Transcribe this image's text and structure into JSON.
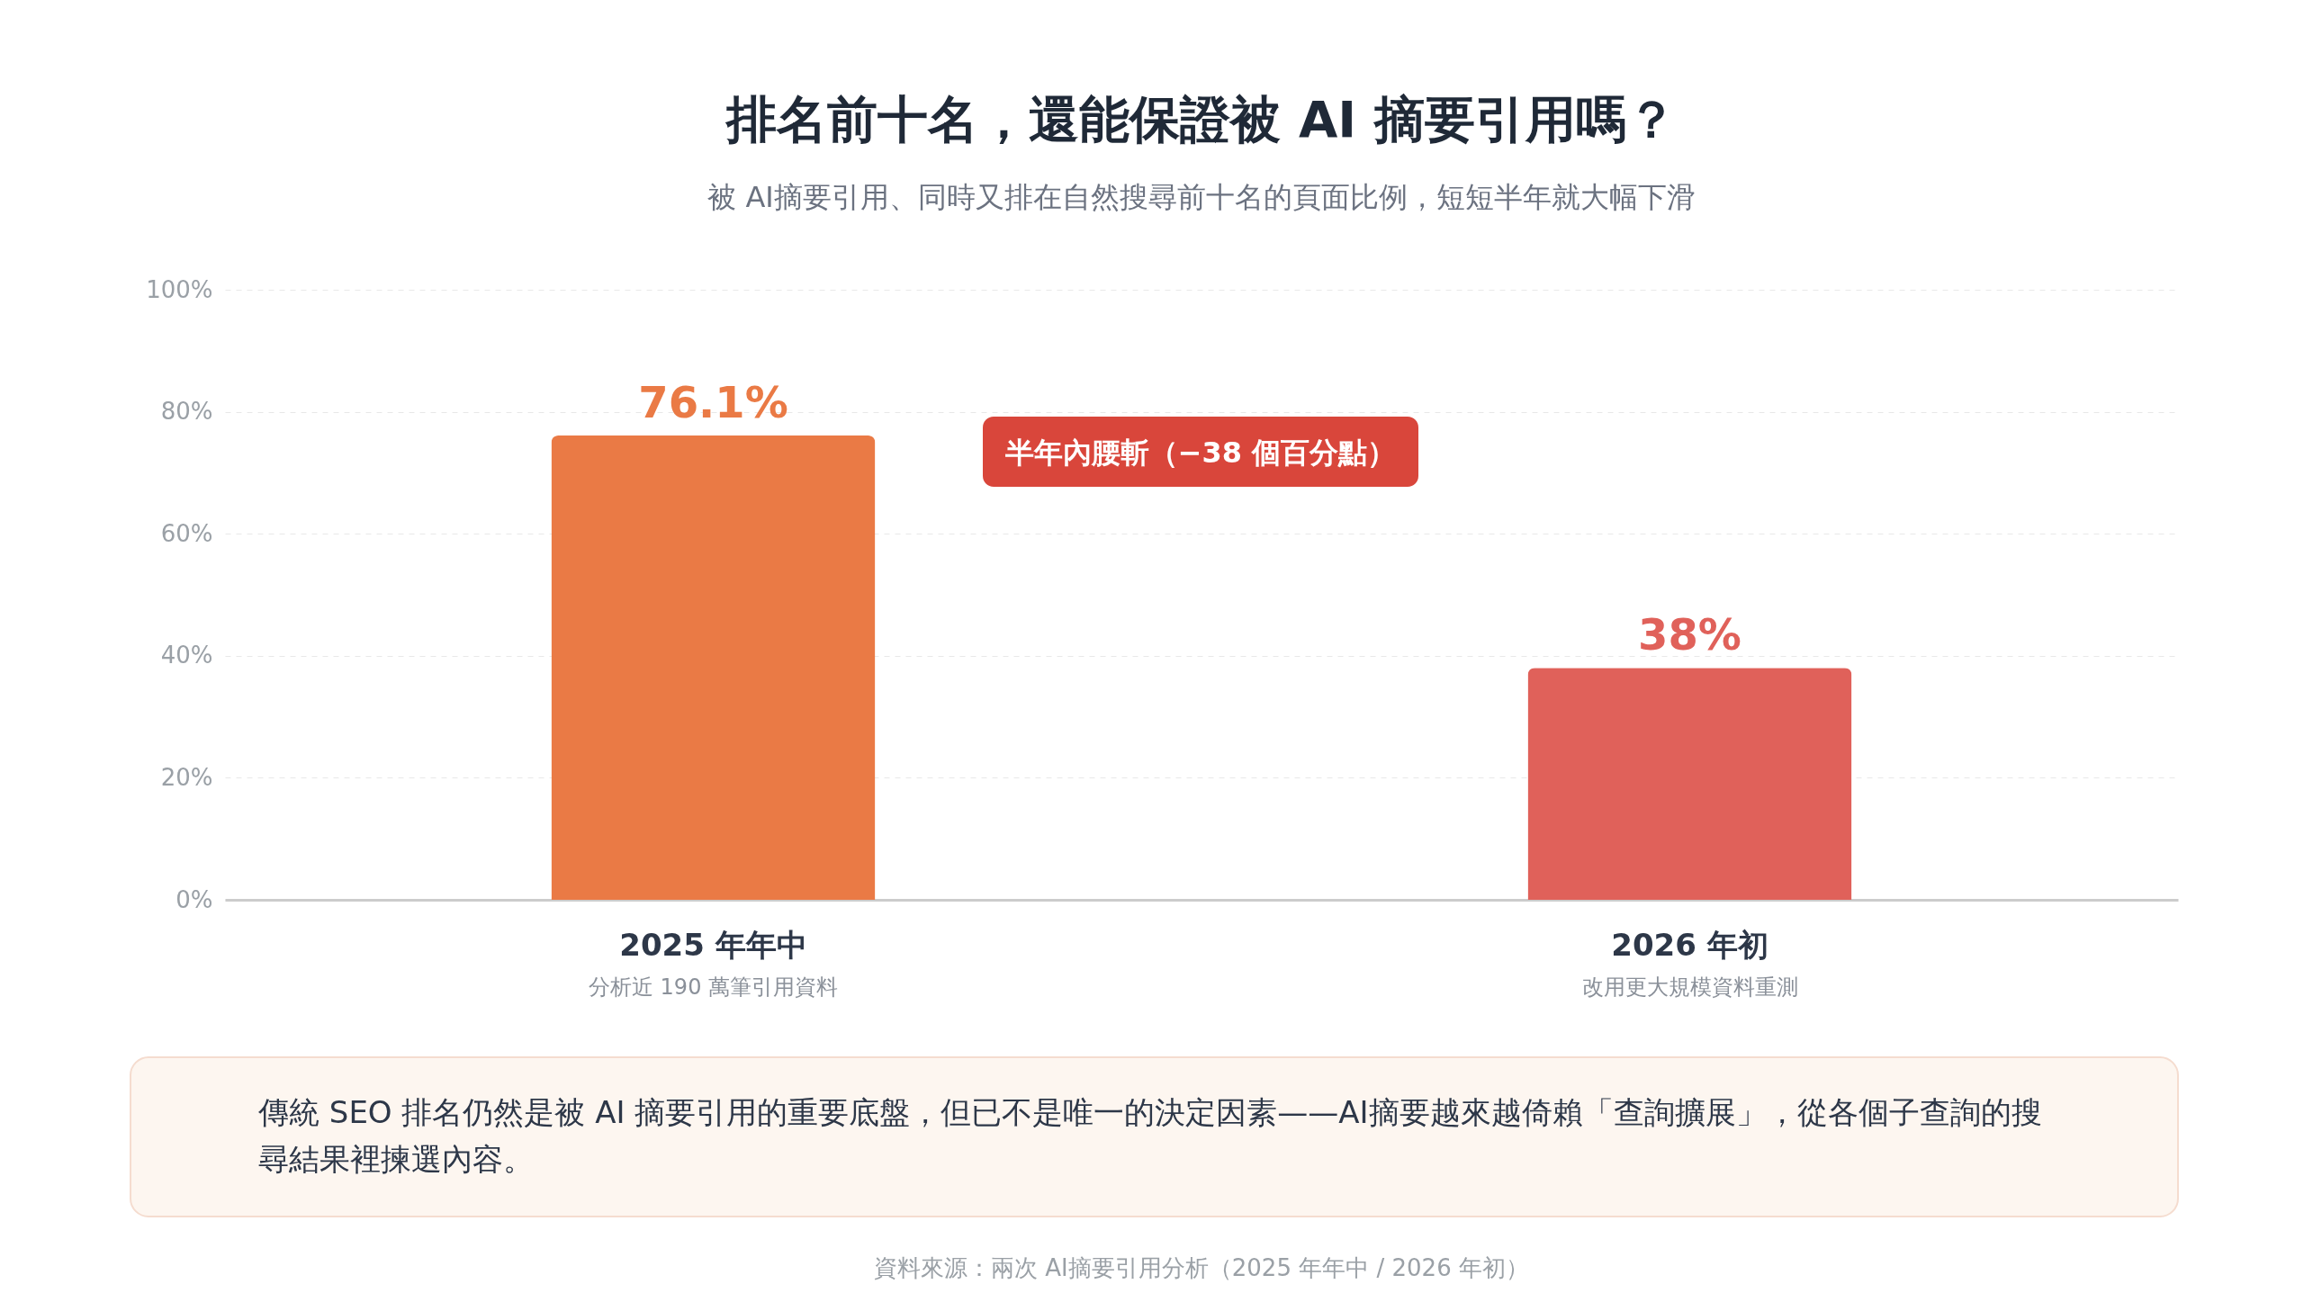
{
  "chart_data": {
    "type": "bar",
    "title": "排名前十名，還能保證被 AI 摘要引用嗎？",
    "subtitle": "被 AI摘要引用、同時又排在自然搜尋前十名的頁面比例，短短半年就大幅下滑",
    "categories": [
      "2025 年年中",
      "2026 年初"
    ],
    "values": [
      76.1,
      38
    ],
    "colors": [
      "#ea7a45",
      "#e0615a"
    ],
    "value_labels": [
      "76.1%",
      "38%"
    ],
    "ylim": [
      0,
      100
    ],
    "yticks": [
      {
        "value": 0,
        "label": "0%"
      },
      {
        "value": 20,
        "label": "20%"
      },
      {
        "value": 40,
        "label": "40%"
      },
      {
        "value": 60,
        "label": "60%"
      },
      {
        "value": 80,
        "label": "80%"
      },
      {
        "value": 100,
        "label": "100%"
      }
    ],
    "grid": "y",
    "annotations": [
      "分析近 190 萬筆引用資料",
      "改用更大規模資料重測",
      "半年內腰斬（−38 個百分點）",
      "傳統 SEO 排名仍然是被 AI 摘要引用的重要底盤，但已不是唯一的決定因素——AI摘要越來越倚賴「查詢擴展」，從各個子查詢的搜尋結果裡揀選內容。",
      "資料來源：兩次 AI摘要引用分析（2025 年年中 / 2026 年初）"
    ]
  }
}
